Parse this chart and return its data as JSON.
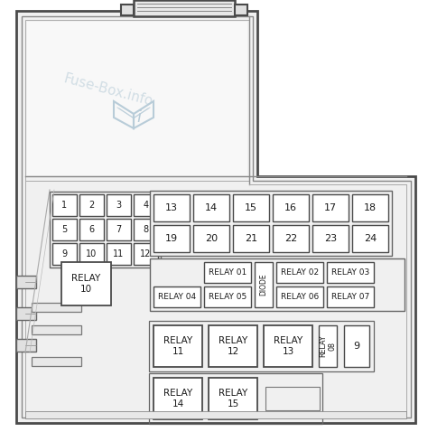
{
  "bg_color": "#ffffff",
  "border_color": "#4a4a4a",
  "box_color": "#ffffff",
  "box_edge_color": "#4a4a4a",
  "text_color": "#1a1a1a",
  "watermark_color": "#b8ccd8",
  "fig_width": 4.74,
  "fig_height": 4.78,
  "watermark_text": "Fuse-Box.info",
  "small_fuses": [
    [
      "1",
      "2",
      "3",
      "4"
    ],
    [
      "5",
      "6",
      "7",
      "8"
    ],
    [
      "9",
      "10",
      "11",
      "12"
    ]
  ],
  "large_fuses_row1": [
    "13",
    "14",
    "15",
    "16",
    "17",
    "18"
  ],
  "large_fuses_row2": [
    "19",
    "20",
    "21",
    "22",
    "23",
    "24"
  ],
  "relay10_label": "RELAY\n10",
  "diode_label": "DIODE",
  "relay08_label": "RELAY\n08",
  "fuse9_label": "9",
  "relay_row3_labels": [
    "RELAY\n11",
    "RELAY\n12",
    "RELAY\n13"
  ],
  "relay_row4_labels": [
    "RELAY\n14",
    "RELAY\n15"
  ],
  "relay01_label": "RELAY 01",
  "relay04_label": "RELAY 04",
  "relay05_label": "RELAY 05",
  "relay02_label": "RELAY 02",
  "relay03_label": "RELAY 03",
  "relay06_label": "RELAY 06",
  "relay07_label": "RELAY 07"
}
